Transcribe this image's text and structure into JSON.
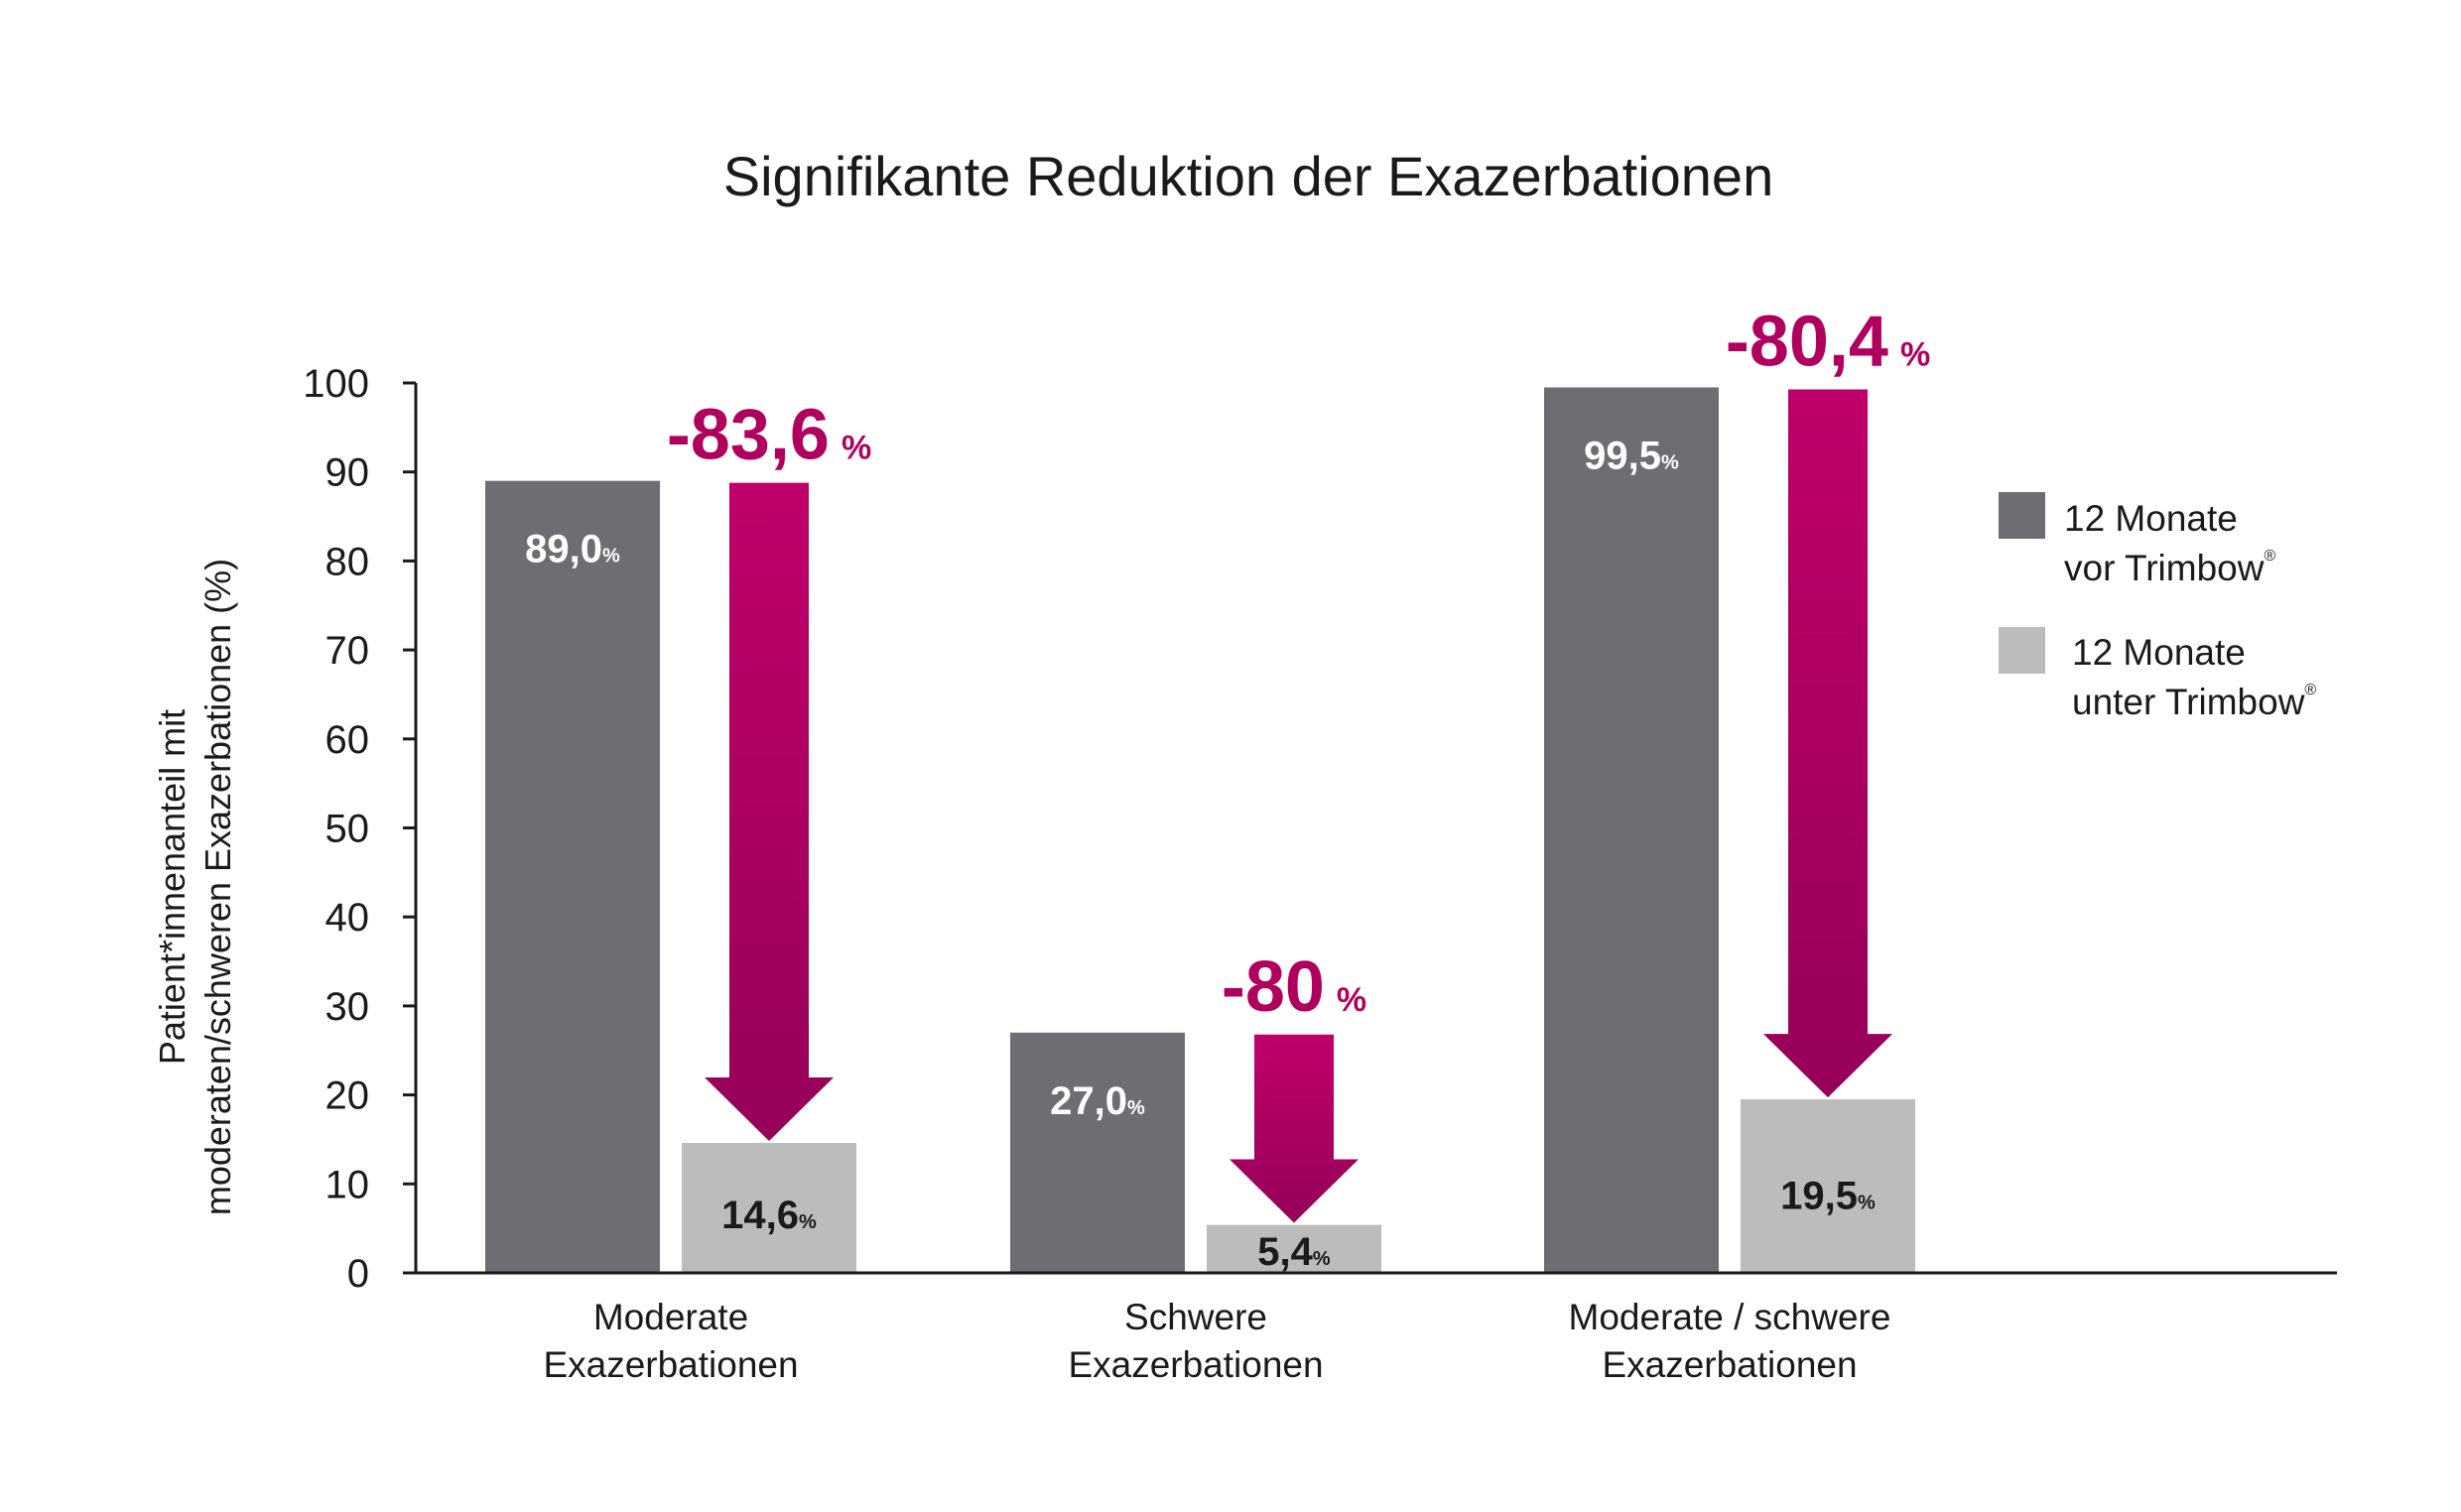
{
  "chart_data": {
    "type": "bar",
    "title": "Signifikante Reduktion der Exazerbationen",
    "ylabel_lines": [
      "Patient*innenanteil mit",
      "moderaten/schweren Exazerbationen (%)"
    ],
    "ylim": [
      0,
      100
    ],
    "yticks": [
      0,
      10,
      20,
      30,
      40,
      50,
      60,
      70,
      80,
      90,
      100
    ],
    "grid": false,
    "legend_position": "right",
    "categories": [
      [
        "Moderate",
        "Exazerbationen"
      ],
      [
        "Schwere",
        "Exazerbationen"
      ],
      [
        "Moderate / schwere",
        "Exazerbationen"
      ]
    ],
    "series": [
      {
        "name_lines": [
          "12 Monate",
          "vor Trimbow"
        ],
        "name_sup": "®",
        "color": "#6d6e73",
        "label_color": "#ffffff",
        "values": [
          89.0,
          27.0,
          99.5
        ],
        "labels": [
          "89,0",
          "27,0",
          "99,5"
        ]
      },
      {
        "name_lines": [
          "12 Monate",
          "unter Trimbow"
        ],
        "name_sup": "®",
        "color": "#bcbcbc",
        "label_color": "#1a1a1a",
        "values": [
          14.6,
          5.4,
          19.5
        ],
        "labels": [
          "14,6",
          "5,4",
          "19,5"
        ]
      }
    ],
    "value_unit": "%",
    "reductions": {
      "labels": [
        "-83,6",
        "-80",
        "-80,4"
      ],
      "unit": "%",
      "color_top": "#c0006a",
      "color_bottom": "#96005a"
    }
  }
}
